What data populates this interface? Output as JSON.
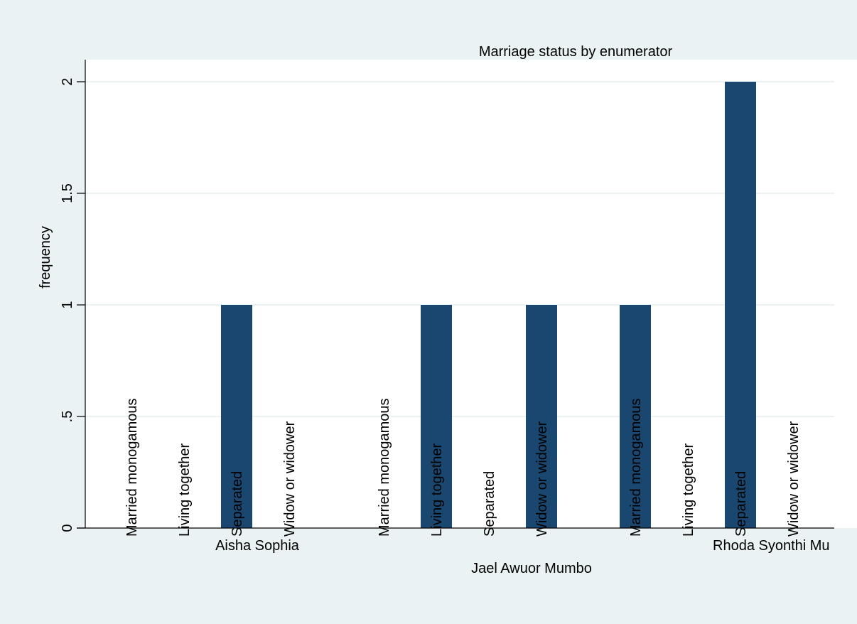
{
  "chart_data": {
    "type": "bar",
    "title": "Marriage status by enumerator",
    "ylabel": "frequency",
    "xlabel": "",
    "ylim": [
      0,
      2
    ],
    "yticks": [
      {
        "value": 0,
        "label": "0"
      },
      {
        "value": 0.5,
        "label": ".5"
      },
      {
        "value": 1,
        "label": "1"
      },
      {
        "value": 1.5,
        "label": "1.5"
      },
      {
        "value": 2,
        "label": "2"
      }
    ],
    "grid": true,
    "groups": [
      {
        "name": "Aisha Sophia",
        "categories": [
          "Married monogamous",
          "Living together",
          "Separated",
          "Widow or widower"
        ],
        "values": [
          0,
          0,
          1,
          0
        ]
      },
      {
        "name": "Jael Awuor Mumbo",
        "categories": [
          "Married monogamous",
          "Living together",
          "Separated",
          "Widow or widower"
        ],
        "values": [
          0,
          1,
          0,
          1
        ]
      },
      {
        "name": "Rhoda Syonthi Mu",
        "categories": [
          "Married monogamous",
          "Living together",
          "Separated",
          "Widow or widower"
        ],
        "values": [
          1,
          0,
          2,
          0
        ]
      }
    ],
    "colors": {
      "bar": "#1a476f",
      "grid": "#eaf2f3",
      "plot_bg": "#ffffff",
      "outer_bg": "#eaf2f3"
    }
  }
}
